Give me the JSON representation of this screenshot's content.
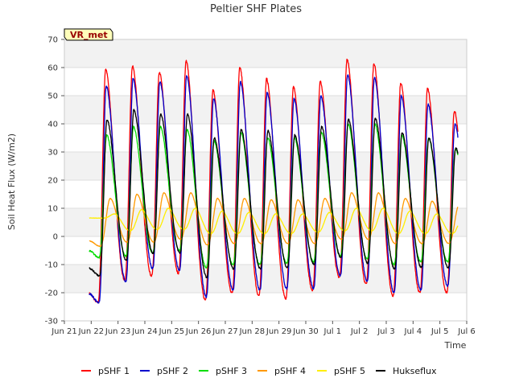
{
  "chart_data": {
    "type": "line",
    "title": "Peltier SHF Plates",
    "xlabel": "Time",
    "ylabel": "Soil Heat Flux (W/m2)",
    "ylim": [
      -30,
      70
    ],
    "xlim": [
      "2024-06-21",
      "2024-07-06"
    ],
    "yticks": [
      -30,
      -20,
      -10,
      0,
      10,
      20,
      30,
      40,
      50,
      60,
      70
    ],
    "xticks": [
      {
        "date": "2024-06-21",
        "label": "Jun 21"
      },
      {
        "date": "2024-06-22",
        "label": "Jun 22"
      },
      {
        "date": "2024-06-23",
        "label": "Jun 23"
      },
      {
        "date": "2024-06-24",
        "label": "Jun 24"
      },
      {
        "date": "2024-06-25",
        "label": "Jun 25"
      },
      {
        "date": "2024-06-26",
        "label": "Jun 26"
      },
      {
        "date": "2024-06-27",
        "label": "Jun 27"
      },
      {
        "date": "2024-06-28",
        "label": "Jun 28"
      },
      {
        "date": "2024-06-29",
        "label": "Jun 29"
      },
      {
        "date": "2024-06-30",
        "label": "Jun 30"
      },
      {
        "date": "2024-07-01",
        "label": "Jul 1"
      },
      {
        "date": "2024-07-02",
        "label": "Jul 2"
      },
      {
        "date": "2024-07-03",
        "label": "Jul 3"
      },
      {
        "date": "2024-07-04",
        "label": "Jul 4"
      },
      {
        "date": "2024-07-05",
        "label": "Jul 5"
      },
      {
        "date": "2024-07-06",
        "label": "Jul 6"
      }
    ],
    "grid": true,
    "legend_position": "bottom",
    "annotation": "VR_met",
    "series": [
      {
        "name": "pSHF 1",
        "color": "#ff0000",
        "max": [
          59.5,
          60.5,
          58.5,
          62.5,
          52,
          60,
          56,
          53,
          55,
          63,
          61.5,
          54.5,
          52.5,
          44.5
        ],
        "min": [
          -23.5,
          -15.5,
          -14,
          -13,
          -22.5,
          -20,
          -21,
          -22,
          -19,
          -14.5,
          -17,
          -21,
          -20,
          -20,
          -20.5
        ]
      },
      {
        "name": "pSHF 2",
        "color": "#0000cc",
        "max": [
          53.5,
          56,
          55,
          57,
          49,
          55,
          51,
          49,
          50,
          57.5,
          56.5,
          50,
          47,
          40
        ],
        "min": [
          -23.5,
          -16,
          -11.5,
          -12,
          -21.5,
          -19,
          -19,
          -18.5,
          -18.5,
          -14,
          -16,
          -20,
          -19,
          -17.5,
          -18.5
        ]
      },
      {
        "name": "pSHF 3",
        "color": "#00dd00",
        "max": [
          36,
          39,
          39,
          38,
          34,
          37,
          35,
          35,
          37,
          40,
          40,
          36,
          35,
          31
        ],
        "min": [
          -7.5,
          -7,
          -6,
          -5,
          -11,
          -10,
          -10,
          -9.5,
          -9,
          -7,
          -8,
          -10,
          -9,
          -9,
          -6
        ]
      },
      {
        "name": "pSHF 4",
        "color": "#ff9900",
        "max": [
          13.5,
          15,
          15.5,
          15.5,
          13.5,
          13.5,
          13,
          13,
          13.5,
          15.5,
          15.5,
          13.5,
          12.5,
          11
        ],
        "min": [
          -3.5,
          -2,
          -2,
          -1,
          -3,
          -2.5,
          -2.5,
          -2.5,
          -2.5,
          -1,
          -1,
          -2.5,
          -2.5,
          -2.5,
          2.5
        ]
      },
      {
        "name": "pSHF 5",
        "color": "#ffee00",
        "max": [
          8,
          9.5,
          10,
          10,
          9,
          8.5,
          8,
          8,
          8.5,
          10,
          10,
          9,
          8,
          7.5
        ],
        "min": [
          6.5,
          2,
          2.5,
          2.5,
          1,
          1,
          1,
          1,
          1.5,
          2,
          2,
          1,
          1,
          1,
          5.5
        ]
      },
      {
        "name": "Hukseflux",
        "color": "#000000",
        "max": [
          41.5,
          45,
          43.5,
          43.5,
          35,
          38,
          37.5,
          36,
          39,
          41.5,
          42,
          37,
          35,
          31.5
        ],
        "min": [
          -14,
          -8.5,
          -6,
          -6,
          -14.5,
          -11.5,
          -11.5,
          -11,
          -10,
          -7.5,
          -9.5,
          -11.5,
          -11,
          -11,
          -10.5
        ]
      }
    ]
  }
}
